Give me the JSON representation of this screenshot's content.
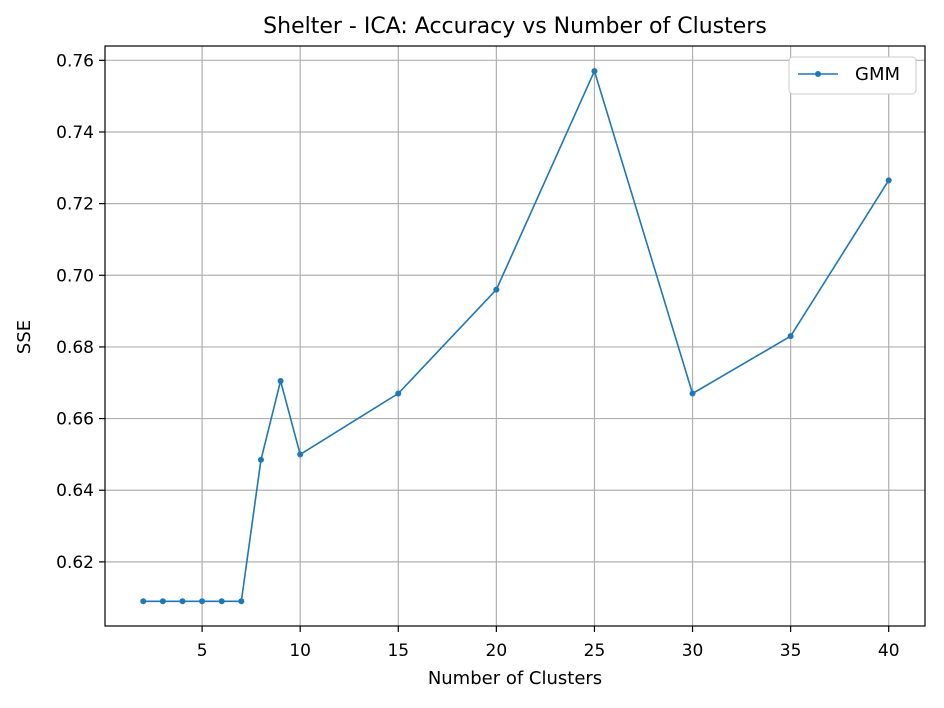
{
  "chart_data": {
    "type": "line",
    "title": "Shelter - ICA: Accuracy vs Number of Clusters",
    "xlabel": "Number of Clusters",
    "ylabel": "SSE",
    "xlim": [
      0.05,
      41.85
    ],
    "ylim": [
      0.6021,
      0.764
    ],
    "xticks": [
      5,
      10,
      15,
      20,
      25,
      30,
      35,
      40
    ],
    "xtick_labels": [
      "5",
      "10",
      "15",
      "20",
      "25",
      "30",
      "35",
      "40"
    ],
    "yticks": [
      0.62,
      0.64,
      0.66,
      0.68,
      0.7,
      0.72,
      0.74,
      0.76
    ],
    "ytick_labels": [
      "0.62",
      "0.64",
      "0.66",
      "0.68",
      "0.70",
      "0.72",
      "0.74",
      "0.76"
    ],
    "grid": true,
    "legend_position": "top-right",
    "series": [
      {
        "name": "GMM",
        "color": "#1f77b4",
        "marker": "circle",
        "x": [
          2,
          3,
          4,
          5,
          6,
          7,
          8,
          9,
          10,
          15,
          20,
          25,
          30,
          35,
          40
        ],
        "y": [
          0.609,
          0.609,
          0.609,
          0.609,
          0.609,
          0.609,
          0.6485,
          0.6705,
          0.65,
          0.667,
          0.696,
          0.757,
          0.667,
          0.683,
          0.7265
        ]
      }
    ]
  }
}
